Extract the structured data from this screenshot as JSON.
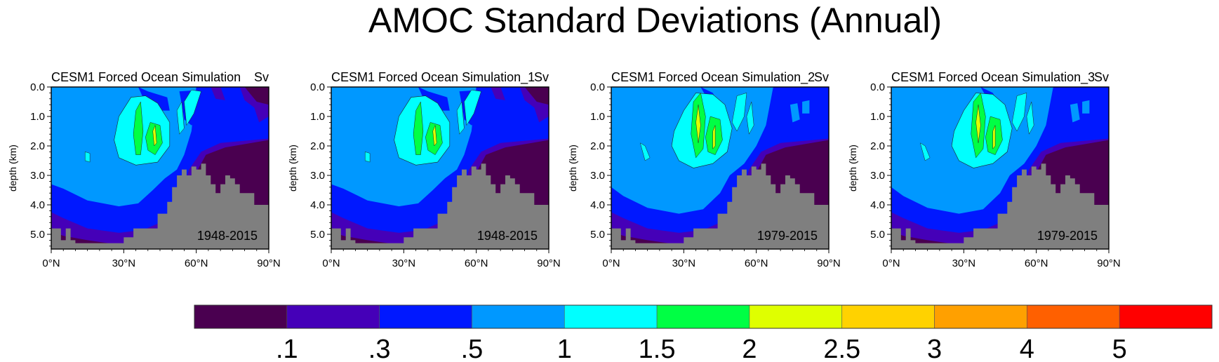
{
  "page": {
    "title": "AMOC Standard Deviations (Annual)"
  },
  "chart_data": [
    {
      "type": "heatmap",
      "title": "CESM1 Forced Ocean Simulation",
      "units": "Sv",
      "period": "1948-2015",
      "xlabel": "",
      "ylabel": "depth (km)",
      "x_ticks": [
        "0°N",
        "30°N",
        "60°N",
        "90°N"
      ],
      "y_ticks": [
        "0.0",
        "1.0",
        "2.0",
        "3.0",
        "4.0",
        "5.0"
      ],
      "xlim": [
        0,
        90
      ],
      "ylim": [
        5.5,
        0.0
      ]
    },
    {
      "type": "heatmap",
      "title": "CESM1 Forced Ocean Simulation_1",
      "units": "Sv",
      "period": "1948-2015",
      "xlabel": "",
      "ylabel": "depth (km)",
      "x_ticks": [
        "0°N",
        "30°N",
        "60°N",
        "90°N"
      ],
      "y_ticks": [
        "0.0",
        "1.0",
        "2.0",
        "3.0",
        "4.0",
        "5.0"
      ],
      "xlim": [
        0,
        90
      ],
      "ylim": [
        5.5,
        0.0
      ]
    },
    {
      "type": "heatmap",
      "title": "CESM1 Forced Ocean Simulation_2",
      "units": "Sv",
      "period": "1979-2015",
      "xlabel": "",
      "ylabel": "depth (km)",
      "x_ticks": [
        "0°N",
        "30°N",
        "60°N",
        "90°N"
      ],
      "y_ticks": [
        "0.0",
        "1.0",
        "2.0",
        "3.0",
        "4.0",
        "5.0"
      ],
      "xlim": [
        0,
        90
      ],
      "ylim": [
        5.5,
        0.0
      ]
    },
    {
      "type": "heatmap",
      "title": "CESM1 Forced Ocean Simulation_3",
      "units": "Sv",
      "period": "1979-2015",
      "xlabel": "",
      "ylabel": "depth (km)",
      "x_ticks": [
        "0°N",
        "30°N",
        "60°N",
        "90°N"
      ],
      "y_ticks": [
        "0.0",
        "1.0",
        "2.0",
        "3.0",
        "4.0",
        "5.0"
      ],
      "xlim": [
        0,
        90
      ],
      "ylim": [
        5.5,
        0.0
      ]
    }
  ],
  "colorbar": {
    "labels": [
      ".1",
      ".3",
      ".5",
      "1",
      "1.5",
      "2",
      "2.5",
      "3",
      "4",
      "5"
    ],
    "colors": [
      "#4a0050",
      "#4500b8",
      "#0018ff",
      "#0098ff",
      "#00ffff",
      "#00ff44",
      "#dfff00",
      "#ffd200",
      "#ffa000",
      "#ff6000",
      "#ff0000"
    ]
  },
  "colors": {
    "land": "#7f7f7f",
    "background": "#ffffff"
  }
}
